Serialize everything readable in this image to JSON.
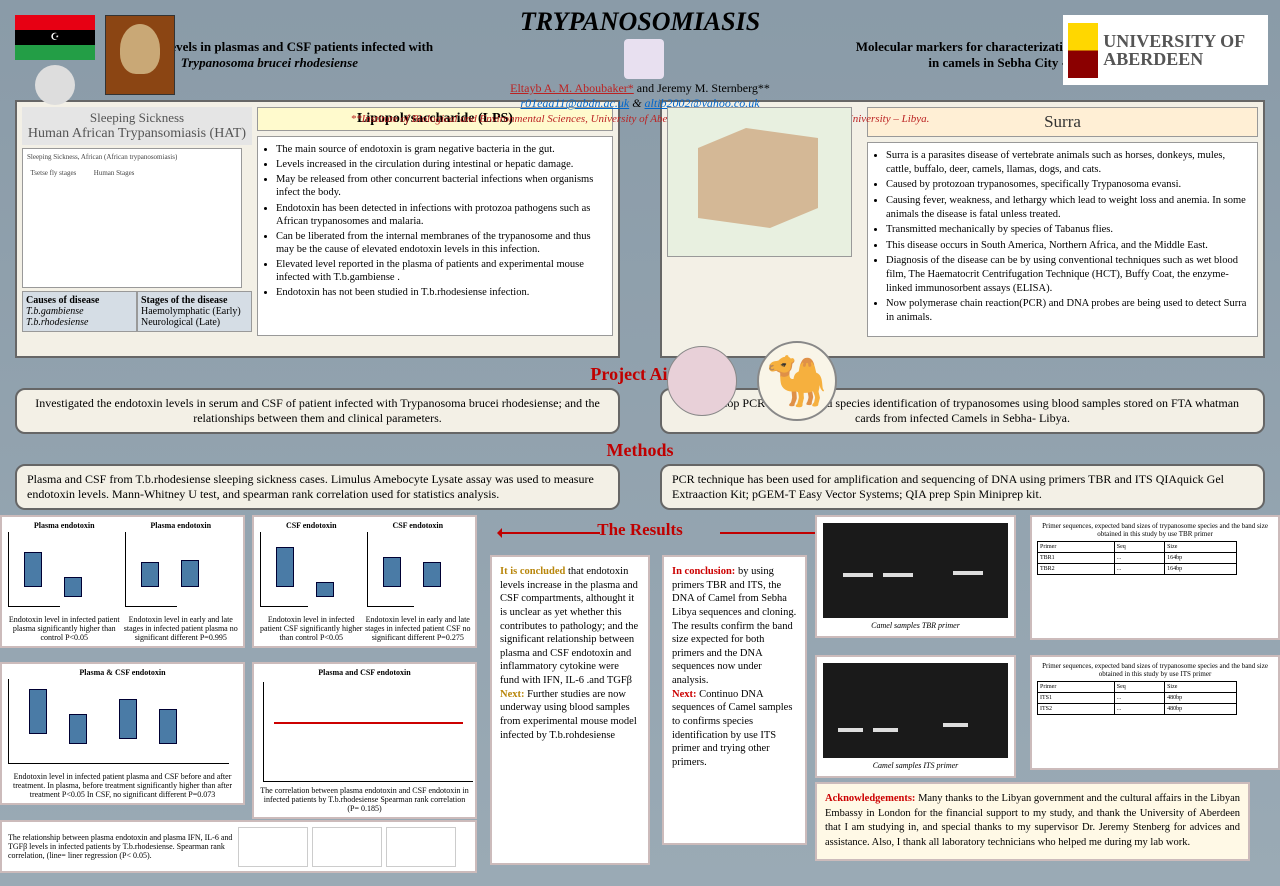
{
  "header": {
    "title": "TRYPANOSOMIASIS",
    "sub_left_1": "Endotoxin levels in plasmas and CSF patients infected with",
    "sub_left_2": "Trypanosoma brucei rhodesiense",
    "sub_right_1": "Molecular markers for characterization of Trypanosomes",
    "sub_right_2": "in camels in Sebha City - Libya",
    "author1": "Eltayb A. M. Aboubaker*",
    "author_and": " and Jeremy M. Sternberg**",
    "email1": "r01eaa11@abdn.ac.uk",
    "amp": " & ",
    "email2": "altib2002@yahoo.co.uk",
    "institute": "**Institute of Biological and Environmental Sciences, University of Aberdeen - UK; *Faculty of Science, Sebha University – Libya.",
    "uni": "UNIVERSITY OF ABERDEEN"
  },
  "ss": {
    "t1": "Sleeping Sickness",
    "t2": "Human African Trypansomiasis (HAT)",
    "causes_h": "Causes of disease",
    "causes_1": "T.b.gambiense",
    "causes_2": "T.b.rhodesiense",
    "stages_h": "Stages of the disease",
    "stages_1": "Haemolymphatic (Early)",
    "stages_2": "Neurological (Late)"
  },
  "lps": {
    "title": "Lipopolysaccharide (LPS)",
    "items": [
      "The main source of endotoxin is gram negative bacteria in the gut.",
      "Levels increased in the circulation during intestinal or hepatic damage.",
      "May be released from other concurrent bacterial infections when organisms infect the body.",
      "Endotoxin has been detected in infections with protozoa pathogens such as African trypanosomes and malaria.",
      "Can be liberated from the internal membranes of the trypanosome and thus may be the cause of elevated endotoxin levels in this infection.",
      "Elevated level reported in the plasma of patients and experimental mouse infected with T.b.gambiense .",
      "Endotoxin has not been studied in T.b.rhodesiense infection."
    ]
  },
  "surra": {
    "title": "Surra",
    "items": [
      "Surra is a  parasites disease of vertebrate animals such as horses, donkeys, mules, cattle, buffalo, deer, camels, llamas, dogs, and cats.",
      "Caused by protozoan trypanosomes, specifically Trypanosoma evansi.",
      "Causing fever, weakness, and lethargy which lead to weight loss and anemia. In some animals the disease is fatal unless treated.",
      "Transmitted mechanically by species of Tabanus flies.",
      "This disease occurs in South America, Northern Africa, and the Middle East.",
      "Diagnosis of the disease can be by using conventional techniques such as wet blood film, The Haematocrit Centrifugation Technique (HCT), Buffy Coat, the enzyme-linked immunosorbent assays (ELISA).",
      "Now polymerase chain reaction(PCR) and DNA probes are being used to detect Surra in animals."
    ]
  },
  "aims": {
    "title": "Project Aims",
    "left": "Investigated the endotoxin levels in serum and CSF of patient infected with Trypanosoma brucei rhodesiense; and  the relationships between them and clinical parameters.",
    "right": "To develop PCR detection and species identification of trypanosomes using blood samples stored on FTA whatman cards from infected Camels in Sebha- Libya."
  },
  "methods": {
    "title": "Methods",
    "left": "Plasma and CSF from T.b.rhodesiense sleeping sickness cases. Limulus Amebocyte Lysate assay  was used to measure endotoxin levels. Mann-Whitney U test, and spearman rank correlation used for statistics analysis.",
    "right": "PCR technique has been used for amplification and sequencing of DNA using primers TBR and ITS QIAquick Gel Extraaction Kit; pGEM-T Easy Vector Systems; QIA prep Spin Miniprep kit."
  },
  "results": {
    "title": "The Results",
    "chart1_t1": "Plasma endotoxin",
    "chart1_t2": "Plasma endotoxin",
    "chart1_cap1": "Endotoxin level in infected patient plasma significantly higher than control P<0.05",
    "chart1_cap2": "Endotoxin level in early and late stages in infected patient plasma no significant different P=0.995",
    "chart2_t1": "CSF endotoxin",
    "chart2_t2": "CSF endotoxin",
    "chart2_cap1": "Endotoxin level in infected patient CSF significantly higher than control P<0.05",
    "chart2_cap2": "Endotoxin level in early and late stages in infected patient CSF no significant different P=0.275",
    "chart3_t": "Plasma & CSF endotoxin",
    "chart3_cap": "Endotoxin level in infected patient plasma and CSF before and after treatment. In plasma, before treatment significantly higher than after treatment P<0.05 In CSF, no significant different P=0.073",
    "chart4_t": "Plasma and CSF endotoxin",
    "chart4_cap": "The correlation between plasma endotoxin and CSF endotoxin in infected patients by T.b.rhodesiense Spearman rank correlation (P= 0.185)",
    "chart5_cap": "The relationship between plasma endotoxin and plasma IFN, IL-6 and TGFβ levels in infected patients by T.b.rhodesiense. Spearman rank correlation, (line= liner regression (P< 0.05).",
    "concl1_h": "It is concluded",
    "concl1": " that endotoxin levels increase in the plasma and CSF compartments, althought it is unclear as yet whether this contributes to pathology; and the significant relationship between plasma and CSF endotoxin and inflammatory cytokine were fund with IFN, IL-6 .and TGFβ",
    "concl1_next_h": "Next:",
    "concl1_next": " Further studies are now underway using blood samples from experimental mouse model infected by T.b.rohdesiense",
    "concl2_h": "In conclusion:",
    "concl2": " by using primers TBR and ITS, the DNA of Camel from Sebha Libya  sequences and cloning. The results confirm the band size expected for both primers and the DNA sequences now  under analysis.",
    "concl2_next_h": "Next:",
    "concl2_next": " Continuo DNA sequences of Camel samples to confirms species identification by use ITS primer and trying other primers.",
    "gel1_cap": "Camel samples TBR primer",
    "gel2_cap": "Camel samples ITS primer",
    "primer1_t": "Primer sequences, expected band sizes of trypanosome species and the band size obtained in this study by use TBR primer",
    "primer2_t": "Primer sequences, expected band sizes of trypanosome species and the band size obtained in this study by use ITS primer",
    "ack_h": "Acknowledgements:",
    "ack": " Many thanks to the Libyan government and the cultural affairs in the Libyan Embassy in London for the financial support to my study, and thank the University of Aberdeen that I am studying in, and special thanks to my supervisor Dr. Jeremy Stenberg for advices and assistance. Also, I thank  all laboratory technicians who helped me during my lab work."
  },
  "colors": {
    "bg1": "#8a9ba8",
    "panel": "#f3f0e6",
    "red": "#c00000",
    "blue": "#4a7ba6"
  }
}
